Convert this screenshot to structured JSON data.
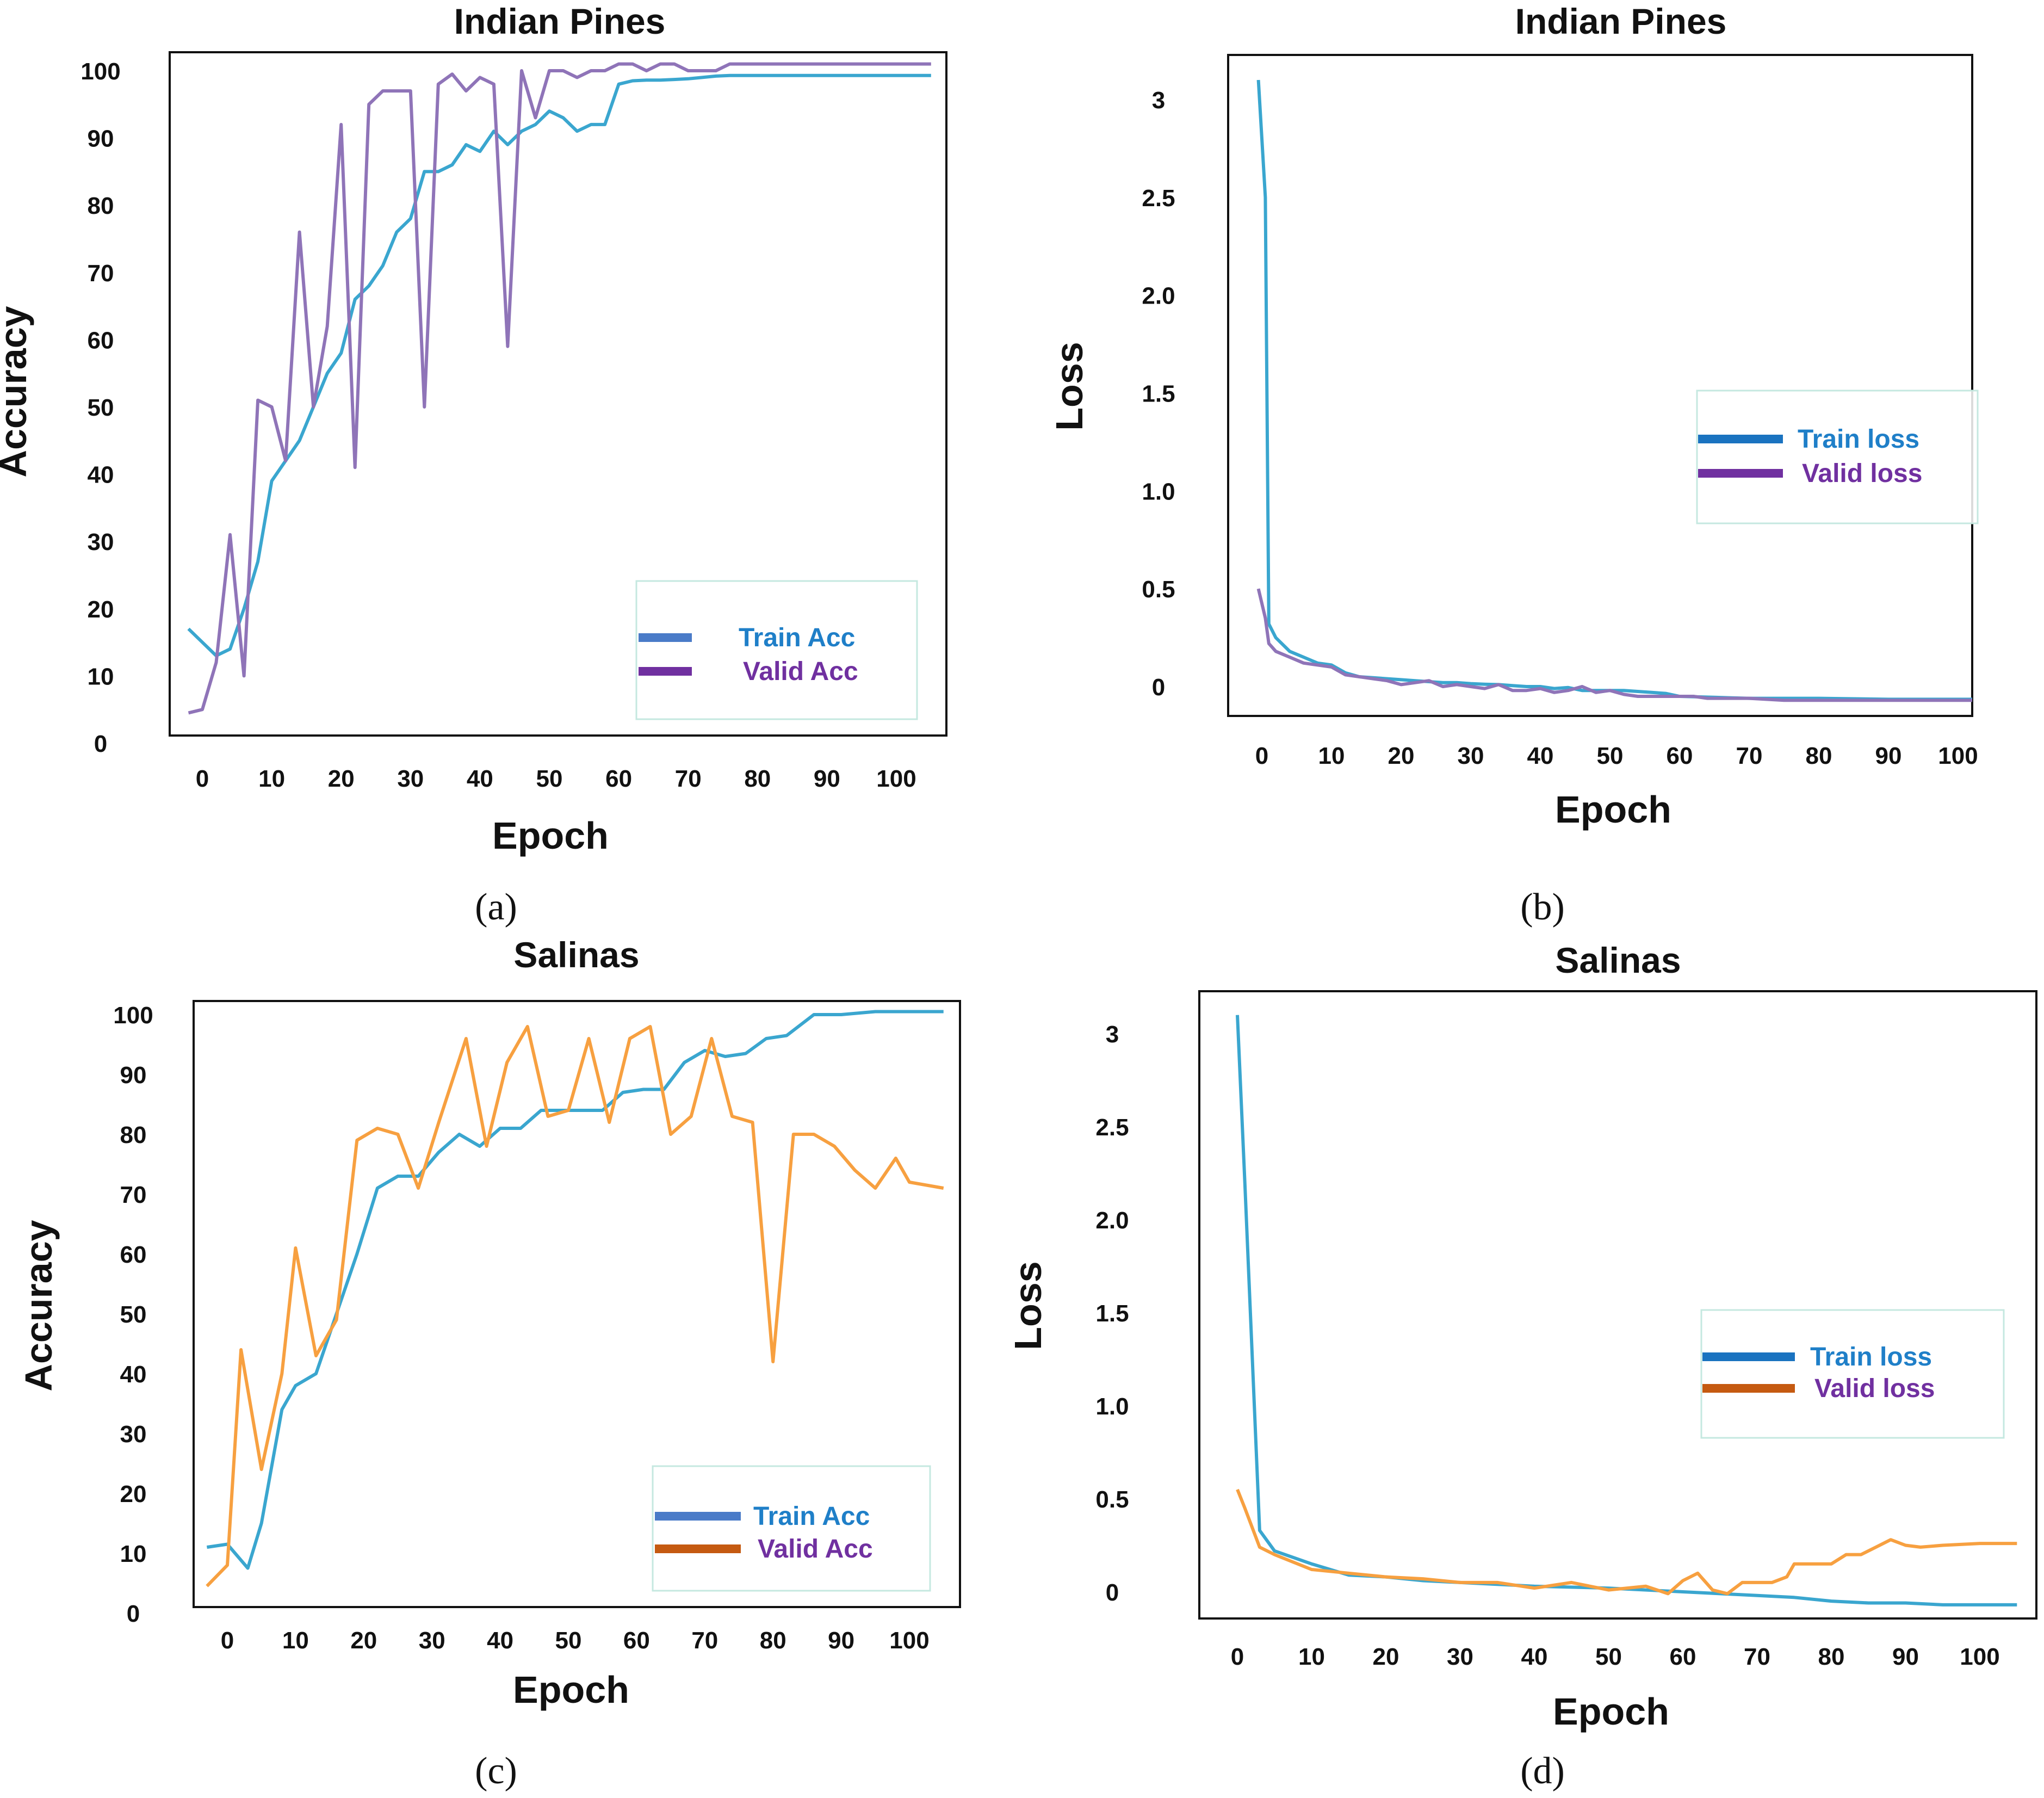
{
  "colors": {
    "train": "#3aa6cf",
    "valid_purple": "#8f74b8",
    "valid_orange": "#f7a040",
    "train_swatch": "#4a7bc8",
    "train_swatch_loss": "#1a73c0",
    "valid_swatch_purple": "#7030a0",
    "valid_swatch_orange": "#c55a11",
    "train_text": "#1f7fc8",
    "valid_text": "#7030a0",
    "legend_border": "#c5e8e0"
  },
  "chart_data": [
    {
      "id": "a",
      "type": "line",
      "caption": "(a)",
      "title": "Indian Pines",
      "xlabel": "Epoch",
      "ylabel": "Accuracy",
      "xticks": [
        "0",
        "10",
        "20",
        "30",
        "40",
        "50",
        "60",
        "70",
        "80",
        "90",
        "100"
      ],
      "yticks": [
        "0",
        "10",
        "20",
        "30",
        "40",
        "50",
        "60",
        "70",
        "80",
        "90",
        "100"
      ],
      "legend": [
        "Train Acc",
        "Valid Acc"
      ],
      "series": [
        {
          "name": "Train Acc",
          "x": [
            -2,
            2,
            4,
            6,
            8,
            10,
            12,
            14,
            16,
            18,
            20,
            22,
            24,
            26,
            28,
            30,
            32,
            34,
            36,
            38,
            40,
            42,
            44,
            46,
            48,
            50,
            52,
            54,
            56,
            58,
            60,
            62,
            64,
            66,
            68,
            70,
            72,
            74,
            76,
            80,
            85,
            90,
            95,
            100,
            105
          ],
          "y": [
            17,
            13,
            14,
            20,
            27,
            39,
            42,
            45,
            50,
            55,
            58,
            66,
            68,
            71,
            76,
            78,
            85,
            85,
            86,
            89,
            88,
            91,
            89,
            91,
            92,
            94,
            93,
            91,
            92,
            92,
            98,
            98.5,
            98.6,
            98.6,
            98.7,
            98.8,
            99,
            99.2,
            99.3,
            99.3,
            99.3,
            99.3,
            99.3,
            99.3,
            99.3
          ]
        },
        {
          "name": "Valid Acc",
          "x": [
            -2,
            0,
            2,
            4,
            6,
            8,
            10,
            12,
            14,
            16,
            18,
            20,
            22,
            24,
            26,
            28,
            30,
            32,
            34,
            36,
            38,
            40,
            42,
            44,
            46,
            48,
            50,
            52,
            54,
            56,
            58,
            60,
            62,
            64,
            66,
            68,
            70,
            72,
            74,
            76,
            80,
            85,
            90,
            95,
            100,
            105
          ],
          "y": [
            4.5,
            5,
            12,
            31,
            10,
            51,
            50,
            42,
            76,
            50,
            62,
            92,
            41,
            95,
            97,
            97,
            97,
            50,
            98,
            99.5,
            97,
            99,
            98,
            59,
            100,
            93,
            100,
            100,
            99,
            100,
            100,
            101,
            101,
            100,
            101,
            101,
            100,
            100,
            100,
            101,
            101,
            101,
            101,
            101,
            101,
            101
          ]
        }
      ]
    },
    {
      "id": "b",
      "type": "line",
      "caption": "(b)",
      "title": "Indian Pines",
      "xlabel": "Epoch",
      "ylabel": "Loss",
      "xticks": [
        "0",
        "10",
        "20",
        "30",
        "40",
        "50",
        "60",
        "70",
        "80",
        "90",
        "100"
      ],
      "yticks": [
        "0",
        "0.5",
        "1.0",
        "1.5",
        "2.0",
        "2.5",
        "3"
      ],
      "legend": [
        "Train loss",
        "Valid loss"
      ],
      "series": [
        {
          "name": "Train loss",
          "x": [
            -0.5,
            0.5,
            1,
            2,
            4,
            6,
            8,
            10,
            12,
            14,
            16,
            18,
            20,
            22,
            24,
            26,
            28,
            30,
            32,
            34,
            36,
            38,
            40,
            42,
            44,
            46,
            48,
            50,
            52,
            54,
            56,
            58,
            60,
            65,
            70,
            75,
            80,
            90,
            100,
            105
          ],
          "y": [
            3.1,
            2.5,
            0.32,
            0.25,
            0.18,
            0.15,
            0.12,
            0.11,
            0.07,
            0.05,
            0.045,
            0.04,
            0.035,
            0.03,
            0.025,
            0.02,
            0.02,
            0.015,
            0.012,
            0.01,
            0.005,
            0.0,
            0.0,
            -0.01,
            -0.005,
            -0.02,
            -0.02,
            -0.02,
            -0.02,
            -0.025,
            -0.03,
            -0.035,
            -0.05,
            -0.055,
            -0.06,
            -0.06,
            -0.06,
            -0.065,
            -0.065,
            -0.065
          ]
        },
        {
          "name": "Valid loss",
          "x": [
            -0.5,
            0.5,
            1,
            2,
            4,
            6,
            8,
            10,
            12,
            14,
            16,
            18,
            20,
            22,
            24,
            26,
            28,
            30,
            32,
            34,
            36,
            38,
            40,
            42,
            44,
            46,
            48,
            50,
            52,
            54,
            56,
            58,
            60,
            62,
            64,
            66,
            68,
            70,
            75,
            80,
            90,
            100,
            105
          ],
          "y": [
            0.5,
            0.35,
            0.22,
            0.18,
            0.15,
            0.12,
            0.11,
            0.1,
            0.06,
            0.05,
            0.04,
            0.03,
            0.01,
            0.02,
            0.03,
            0.0,
            0.01,
            0.0,
            -0.01,
            0.01,
            -0.02,
            -0.02,
            -0.01,
            -0.03,
            -0.02,
            0.0,
            -0.03,
            -0.02,
            -0.04,
            -0.05,
            -0.05,
            -0.05,
            -0.05,
            -0.05,
            -0.06,
            -0.06,
            -0.06,
            -0.06,
            -0.07,
            -0.07,
            -0.07,
            -0.07,
            -0.07
          ]
        }
      ]
    },
    {
      "id": "c",
      "type": "line",
      "caption": "(c)",
      "title": "Salinas",
      "xlabel": "Epoch",
      "ylabel": "Accuracy",
      "xticks": [
        "0",
        "10",
        "20",
        "30",
        "40",
        "50",
        "60",
        "70",
        "80",
        "90",
        "100"
      ],
      "yticks": [
        "0",
        "10",
        "20",
        "30",
        "40",
        "50",
        "60",
        "70",
        "80",
        "90",
        "100"
      ],
      "legend": [
        "Train Acc",
        "Valid Acc"
      ],
      "series": [
        {
          "name": "Train Acc",
          "x": [
            -3,
            0,
            3,
            5,
            8,
            10,
            13,
            16,
            19,
            22,
            25,
            28,
            31,
            34,
            37,
            40,
            43,
            46,
            49,
            52,
            55,
            58,
            61,
            64,
            67,
            70,
            73,
            76,
            79,
            82,
            86,
            90,
            95,
            100,
            105
          ],
          "y": [
            11,
            11.5,
            7.5,
            15,
            34,
            38,
            40,
            50,
            60,
            71,
            73,
            73,
            77,
            80,
            78,
            81,
            81,
            84,
            84,
            84,
            84,
            87,
            87.5,
            87.5,
            92,
            94,
            93,
            93.5,
            96,
            96.5,
            100,
            100,
            100.5,
            100.5,
            100.5
          ]
        },
        {
          "name": "Valid Acc",
          "x": [
            -3,
            0,
            2,
            5,
            8,
            10,
            13,
            16,
            19,
            22,
            25,
            28,
            31,
            35,
            38,
            41,
            44,
            47,
            50,
            53,
            56,
            59,
            62,
            65,
            68,
            71,
            74,
            77,
            80,
            83,
            86,
            89,
            92,
            95,
            98,
            100,
            105
          ],
          "y": [
            4.5,
            8,
            44,
            24,
            40,
            61,
            43,
            49,
            79,
            81,
            80,
            71,
            82,
            96,
            78,
            92,
            98,
            83,
            84,
            96,
            82,
            96,
            98,
            80,
            83,
            96,
            83,
            82,
            42,
            80,
            80,
            78,
            74,
            71,
            76,
            72,
            71
          ]
        }
      ]
    },
    {
      "id": "d",
      "type": "line",
      "caption": "(d)",
      "title": "Salinas",
      "xlabel": "Epoch",
      "ylabel": "Loss",
      "xticks": [
        "0",
        "10",
        "20",
        "30",
        "40",
        "50",
        "60",
        "70",
        "80",
        "90",
        "100"
      ],
      "yticks": [
        "0",
        "0.5",
        "1.0",
        "1.5",
        "2.0",
        "2.5",
        "3"
      ],
      "legend": [
        "Train loss",
        "Valid loss"
      ],
      "series": [
        {
          "name": "Train loss",
          "x": [
            0,
            1,
            3,
            5,
            10,
            15,
            20,
            25,
            30,
            40,
            50,
            60,
            65,
            70,
            75,
            80,
            85,
            90,
            95,
            100,
            105
          ],
          "y": [
            3.1,
            2.2,
            0.33,
            0.22,
            0.15,
            0.09,
            0.08,
            0.06,
            0.05,
            0.03,
            0.02,
            0.0,
            -0.01,
            -0.02,
            -0.03,
            -0.05,
            -0.06,
            -0.06,
            -0.07,
            -0.07,
            -0.07
          ]
        },
        {
          "name": "Valid loss",
          "x": [
            0,
            1,
            3,
            5,
            10,
            15,
            20,
            25,
            30,
            35,
            40,
            45,
            50,
            55,
            58,
            60,
            62,
            64,
            66,
            68,
            70,
            72,
            74,
            75,
            76,
            78,
            80,
            82,
            84,
            86,
            88,
            90,
            92,
            95,
            100,
            105
          ],
          "y": [
            0.55,
            0.45,
            0.24,
            0.2,
            0.12,
            0.1,
            0.08,
            0.07,
            0.05,
            0.05,
            0.02,
            0.05,
            0.01,
            0.03,
            -0.01,
            0.06,
            0.1,
            0.01,
            -0.01,
            0.05,
            0.05,
            0.05,
            0.08,
            0.15,
            0.15,
            0.15,
            0.15,
            0.2,
            0.2,
            0.24,
            0.28,
            0.25,
            0.24,
            0.25,
            0.26,
            0.26
          ]
        }
      ]
    }
  ]
}
